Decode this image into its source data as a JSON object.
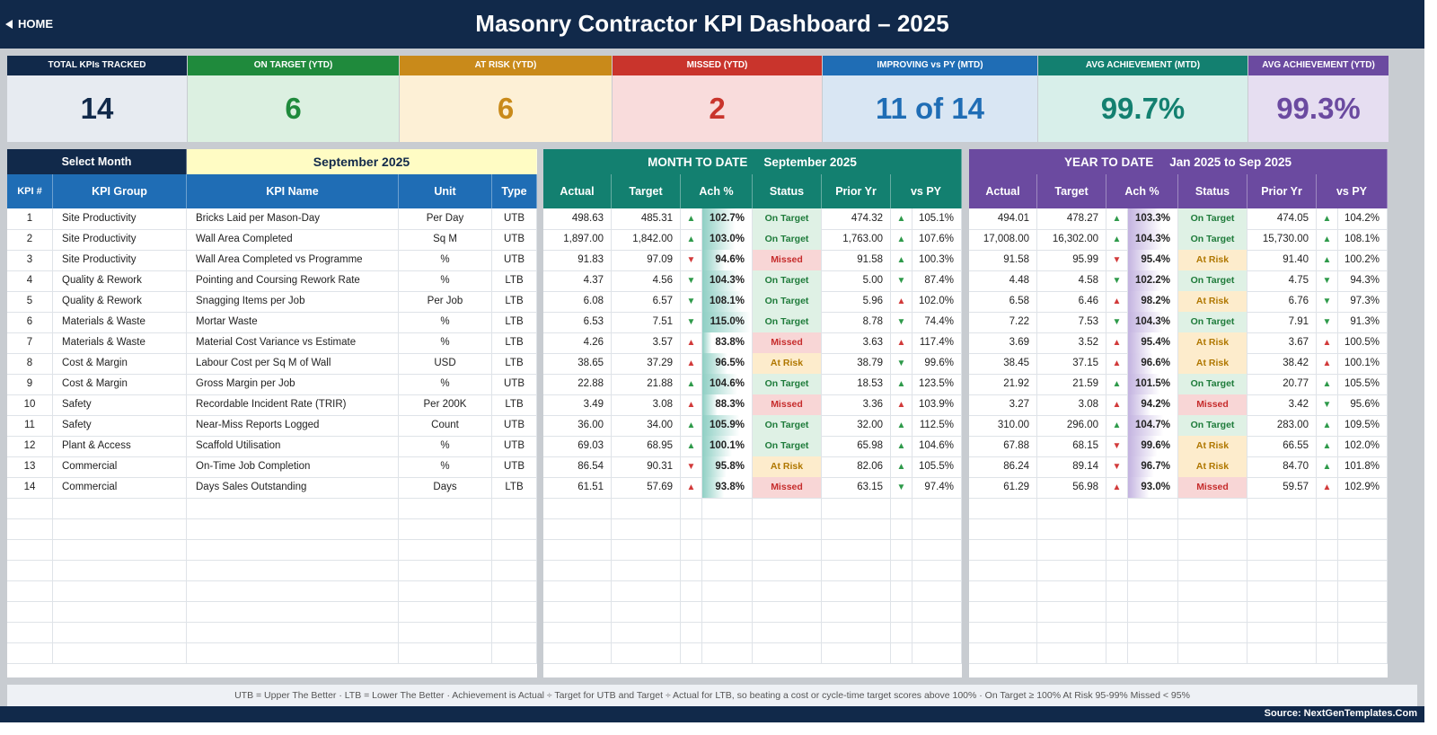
{
  "header": {
    "home_label": "HOME",
    "title": "Masonry Contractor KPI Dashboard   –   2025"
  },
  "cards": [
    {
      "label": "TOTAL KPIs TRACKED",
      "value": "14",
      "head_color": "#11294a",
      "body_color": "#e7ebf1",
      "text_color": "#11294a"
    },
    {
      "label": "ON TARGET (YTD)",
      "value": "6",
      "head_color": "#1f8a3c",
      "body_color": "#dcf0e1",
      "text_color": "#1f8a3c"
    },
    {
      "label": "AT RISK (YTD)",
      "value": "6",
      "head_color": "#c98a1a",
      "body_color": "#fdf0d6",
      "text_color": "#c98a1a"
    },
    {
      "label": "MISSED (YTD)",
      "value": "2",
      "head_color": "#c9342c",
      "body_color": "#f9dcdc",
      "text_color": "#c9342c"
    },
    {
      "label": "IMPROVING vs PY (MTD)",
      "value": "11 of 14",
      "head_color": "#1f6db5",
      "body_color": "#d9e6f3",
      "text_color": "#1f6db5"
    },
    {
      "label": "AVG ACHIEVEMENT (MTD)",
      "value": "99.7%",
      "head_color": "#138070",
      "body_color": "#d8efea",
      "text_color": "#138070"
    },
    {
      "label": "AVG ACHIEVEMENT (YTD)",
      "value": "99.3%",
      "head_color": "#6b4aa0",
      "body_color": "#e6def1",
      "text_color": "#6b4aa0"
    }
  ],
  "selector": {
    "label": "Select Month",
    "value": "September 2025"
  },
  "mtd": {
    "title": "MONTH TO DATE",
    "period": "September 2025"
  },
  "ytd": {
    "title": "YEAR TO DATE",
    "period": "Jan 2025  to  Sep 2025"
  },
  "left_headers": [
    "KPI #",
    "KPI Group",
    "KPI Name",
    "Unit",
    "Type"
  ],
  "mtd_headers": [
    "Actual",
    "Target",
    "Ach %",
    "Status",
    "Prior Yr",
    "vs PY"
  ],
  "ytd_headers": [
    "Actual",
    "Target",
    "Ach %",
    "Status",
    "Prior Yr",
    "vs PY"
  ],
  "colors": {
    "navy": "#11294a",
    "blue_head": "#1f6db5",
    "teal_head": "#138070",
    "purple_head": "#6b4aa0",
    "selector_bg": "#fffcc4"
  },
  "rows": [
    {
      "n": "1",
      "group": "Site Productivity",
      "name": "Bricks Laid per Mason-Day",
      "unit": "Per Day",
      "type": "UTB",
      "m": {
        "actual": "498.63",
        "target": "485.31",
        "arr": "up-g",
        "ach": "102.7%",
        "ach_v": 102.7,
        "status": "On Target",
        "prior": "474.32",
        "py_arr": "up-g",
        "vspy": "105.1%"
      },
      "y": {
        "actual": "494.01",
        "target": "478.27",
        "arr": "up-g",
        "ach": "103.3%",
        "ach_v": 103.3,
        "status": "On Target",
        "prior": "474.05",
        "py_arr": "up-g",
        "vspy": "104.2%"
      }
    },
    {
      "n": "2",
      "group": "Site Productivity",
      "name": "Wall Area Completed",
      "unit": "Sq M",
      "type": "UTB",
      "m": {
        "actual": "1,897.00",
        "target": "1,842.00",
        "arr": "up-g",
        "ach": "103.0%",
        "ach_v": 103.0,
        "status": "On Target",
        "prior": "1,763.00",
        "py_arr": "up-g",
        "vspy": "107.6%"
      },
      "y": {
        "actual": "17,008.00",
        "target": "16,302.00",
        "arr": "up-g",
        "ach": "104.3%",
        "ach_v": 104.3,
        "status": "On Target",
        "prior": "15,730.00",
        "py_arr": "up-g",
        "vspy": "108.1%"
      }
    },
    {
      "n": "3",
      "group": "Site Productivity",
      "name": "Wall Area Completed vs Programme",
      "unit": "%",
      "type": "UTB",
      "m": {
        "actual": "91.83",
        "target": "97.09",
        "arr": "dn-r",
        "ach": "94.6%",
        "ach_v": 94.6,
        "status": "Missed",
        "prior": "91.58",
        "py_arr": "up-g",
        "vspy": "100.3%"
      },
      "y": {
        "actual": "91.58",
        "target": "95.99",
        "arr": "dn-r",
        "ach": "95.4%",
        "ach_v": 95.4,
        "status": "At Risk",
        "prior": "91.40",
        "py_arr": "up-g",
        "vspy": "100.2%"
      }
    },
    {
      "n": "4",
      "group": "Quality & Rework",
      "name": "Pointing and Coursing Rework Rate",
      "unit": "%",
      "type": "LTB",
      "m": {
        "actual": "4.37",
        "target": "4.56",
        "arr": "dn-g",
        "ach": "104.3%",
        "ach_v": 104.3,
        "status": "On Target",
        "prior": "5.00",
        "py_arr": "dn-g",
        "vspy": "87.4%"
      },
      "y": {
        "actual": "4.48",
        "target": "4.58",
        "arr": "dn-g",
        "ach": "102.2%",
        "ach_v": 102.2,
        "status": "On Target",
        "prior": "4.75",
        "py_arr": "dn-g",
        "vspy": "94.3%"
      }
    },
    {
      "n": "5",
      "group": "Quality & Rework",
      "name": "Snagging Items per Job",
      "unit": "Per Job",
      "type": "LTB",
      "m": {
        "actual": "6.08",
        "target": "6.57",
        "arr": "dn-g",
        "ach": "108.1%",
        "ach_v": 108.1,
        "status": "On Target",
        "prior": "5.96",
        "py_arr": "up-r",
        "vspy": "102.0%"
      },
      "y": {
        "actual": "6.58",
        "target": "6.46",
        "arr": "up-r",
        "ach": "98.2%",
        "ach_v": 98.2,
        "status": "At Risk",
        "prior": "6.76",
        "py_arr": "dn-g",
        "vspy": "97.3%"
      }
    },
    {
      "n": "6",
      "group": "Materials & Waste",
      "name": "Mortar Waste",
      "unit": "%",
      "type": "LTB",
      "m": {
        "actual": "6.53",
        "target": "7.51",
        "arr": "dn-g",
        "ach": "115.0%",
        "ach_v": 115.0,
        "status": "On Target",
        "prior": "8.78",
        "py_arr": "dn-g",
        "vspy": "74.4%"
      },
      "y": {
        "actual": "7.22",
        "target": "7.53",
        "arr": "dn-g",
        "ach": "104.3%",
        "ach_v": 104.3,
        "status": "On Target",
        "prior": "7.91",
        "py_arr": "dn-g",
        "vspy": "91.3%"
      }
    },
    {
      "n": "7",
      "group": "Materials & Waste",
      "name": "Material Cost Variance vs Estimate",
      "unit": "%",
      "type": "LTB",
      "m": {
        "actual": "4.26",
        "target": "3.57",
        "arr": "up-r",
        "ach": "83.8%",
        "ach_v": 83.8,
        "status": "Missed",
        "prior": "3.63",
        "py_arr": "up-r",
        "vspy": "117.4%"
      },
      "y": {
        "actual": "3.69",
        "target": "3.52",
        "arr": "up-r",
        "ach": "95.4%",
        "ach_v": 95.4,
        "status": "At Risk",
        "prior": "3.67",
        "py_arr": "up-r",
        "vspy": "100.5%"
      }
    },
    {
      "n": "8",
      "group": "Cost & Margin",
      "name": "Labour Cost per Sq M of Wall",
      "unit": "USD",
      "type": "LTB",
      "m": {
        "actual": "38.65",
        "target": "37.29",
        "arr": "up-r",
        "ach": "96.5%",
        "ach_v": 96.5,
        "status": "At Risk",
        "prior": "38.79",
        "py_arr": "dn-g",
        "vspy": "99.6%"
      },
      "y": {
        "actual": "38.45",
        "target": "37.15",
        "arr": "up-r",
        "ach": "96.6%",
        "ach_v": 96.6,
        "status": "At Risk",
        "prior": "38.42",
        "py_arr": "up-r",
        "vspy": "100.1%"
      }
    },
    {
      "n": "9",
      "group": "Cost & Margin",
      "name": "Gross Margin per Job",
      "unit": "%",
      "type": "UTB",
      "m": {
        "actual": "22.88",
        "target": "21.88",
        "arr": "up-g",
        "ach": "104.6%",
        "ach_v": 104.6,
        "status": "On Target",
        "prior": "18.53",
        "py_arr": "up-g",
        "vspy": "123.5%"
      },
      "y": {
        "actual": "21.92",
        "target": "21.59",
        "arr": "up-g",
        "ach": "101.5%",
        "ach_v": 101.5,
        "status": "On Target",
        "prior": "20.77",
        "py_arr": "up-g",
        "vspy": "105.5%"
      }
    },
    {
      "n": "10",
      "group": "Safety",
      "name": "Recordable Incident Rate (TRIR)",
      "unit": "Per 200K",
      "type": "LTB",
      "m": {
        "actual": "3.49",
        "target": "3.08",
        "arr": "up-r",
        "ach": "88.3%",
        "ach_v": 88.3,
        "status": "Missed",
        "prior": "3.36",
        "py_arr": "up-r",
        "vspy": "103.9%"
      },
      "y": {
        "actual": "3.27",
        "target": "3.08",
        "arr": "up-r",
        "ach": "94.2%",
        "ach_v": 94.2,
        "status": "Missed",
        "prior": "3.42",
        "py_arr": "dn-g",
        "vspy": "95.6%"
      }
    },
    {
      "n": "11",
      "group": "Safety",
      "name": "Near-Miss Reports Logged",
      "unit": "Count",
      "type": "UTB",
      "m": {
        "actual": "36.00",
        "target": "34.00",
        "arr": "up-g",
        "ach": "105.9%",
        "ach_v": 105.9,
        "status": "On Target",
        "prior": "32.00",
        "py_arr": "up-g",
        "vspy": "112.5%"
      },
      "y": {
        "actual": "310.00",
        "target": "296.00",
        "arr": "up-g",
        "ach": "104.7%",
        "ach_v": 104.7,
        "status": "On Target",
        "prior": "283.00",
        "py_arr": "up-g",
        "vspy": "109.5%"
      }
    },
    {
      "n": "12",
      "group": "Plant & Access",
      "name": "Scaffold Utilisation",
      "unit": "%",
      "type": "UTB",
      "m": {
        "actual": "69.03",
        "target": "68.95",
        "arr": "up-g",
        "ach": "100.1%",
        "ach_v": 100.1,
        "status": "On Target",
        "prior": "65.98",
        "py_arr": "up-g",
        "vspy": "104.6%"
      },
      "y": {
        "actual": "67.88",
        "target": "68.15",
        "arr": "dn-r",
        "ach": "99.6%",
        "ach_v": 99.6,
        "status": "At Risk",
        "prior": "66.55",
        "py_arr": "up-g",
        "vspy": "102.0%"
      }
    },
    {
      "n": "13",
      "group": "Commercial",
      "name": "On-Time Job Completion",
      "unit": "%",
      "type": "UTB",
      "m": {
        "actual": "86.54",
        "target": "90.31",
        "arr": "dn-r",
        "ach": "95.8%",
        "ach_v": 95.8,
        "status": "At Risk",
        "prior": "82.06",
        "py_arr": "up-g",
        "vspy": "105.5%"
      },
      "y": {
        "actual": "86.24",
        "target": "89.14",
        "arr": "dn-r",
        "ach": "96.7%",
        "ach_v": 96.7,
        "status": "At Risk",
        "prior": "84.70",
        "py_arr": "up-g",
        "vspy": "101.8%"
      }
    },
    {
      "n": "14",
      "group": "Commercial",
      "name": "Days Sales Outstanding",
      "unit": "Days",
      "type": "LTB",
      "m": {
        "actual": "61.51",
        "target": "57.69",
        "arr": "up-r",
        "ach": "93.8%",
        "ach_v": 93.8,
        "status": "Missed",
        "prior": "63.15",
        "py_arr": "dn-g",
        "vspy": "97.4%"
      },
      "y": {
        "actual": "61.29",
        "target": "56.98",
        "arr": "up-r",
        "ach": "93.0%",
        "ach_v": 93.0,
        "status": "Missed",
        "prior": "59.57",
        "py_arr": "up-r",
        "vspy": "102.9%"
      }
    }
  ],
  "footer": {
    "note": "UTB = Upper The Better   ·   LTB = Lower The Better   ·   Achievement is Actual ÷ Target for UTB and Target ÷ Actual for LTB, so beating a cost or cycle-time target scores above 100%   ·   On Target ≥ 100%     At Risk 95-99%     Missed < 95%",
    "source": "Source: NextGenTemplates.Com"
  }
}
